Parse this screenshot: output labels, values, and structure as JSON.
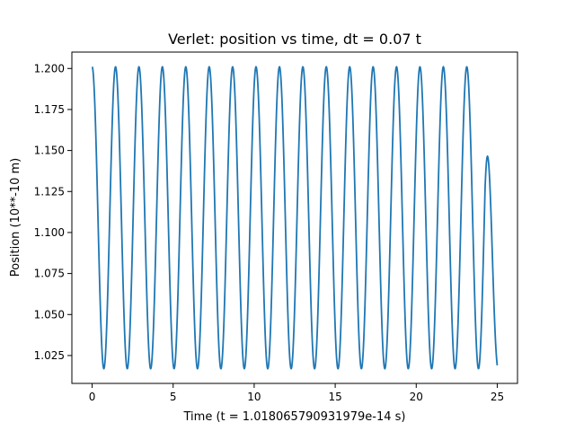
{
  "chart_data": {
    "type": "line",
    "title": "Verlet: position vs time, dt = 0.07 t",
    "xlabel": "Time (t = 1.018065790931979e-14 s)",
    "ylabel": "Position (10**-10 m)",
    "xlim": [
      -1.25,
      26.25
    ],
    "ylim": [
      1.008,
      1.21
    ],
    "x_ticks": [
      0,
      5,
      10,
      15,
      20,
      25
    ],
    "x_tick_labels": [
      "0",
      "5",
      "10",
      "15",
      "20",
      "25"
    ],
    "y_ticks": [
      1.025,
      1.05,
      1.075,
      1.1,
      1.125,
      1.15,
      1.175,
      1.2
    ],
    "y_tick_labels": [
      "1.025",
      "1.050",
      "1.075",
      "1.100",
      "1.125",
      "1.150",
      "1.175",
      "1.200"
    ],
    "grid": false,
    "legend": "none",
    "color": "#1f77b4",
    "series": [
      {
        "x": [
          0,
          0.35,
          0.7,
          0.76,
          1.05,
          1.4,
          1.45,
          1.85,
          2.2,
          2.5,
          2.9,
          3.3,
          3.6,
          4.0,
          4.35,
          4.65,
          5.05,
          5.45,
          5.75,
          6.15,
          6.5,
          6.8,
          7.2,
          7.55,
          7.9,
          8.3,
          8.6,
          9.0,
          9.35,
          9.65,
          10.05,
          10.45,
          10.75,
          11.15,
          11.5,
          11.85,
          12.2,
          12.6,
          12.9,
          13.3,
          13.65,
          14.0,
          14.35,
          14.75,
          15.1,
          15.45,
          15.8,
          16.15,
          16.5,
          16.85,
          17.25,
          17.6,
          17.95,
          18.3,
          18.65,
          19.05,
          19.4,
          19.75,
          20.1,
          20.45,
          20.8,
          21.2,
          21.55,
          21.9,
          22.25,
          22.6,
          22.95,
          23.35,
          23.7,
          24.05,
          24.4,
          24.75,
          25.0
        ],
        "y": [
          1.201,
          1.15,
          1.04,
          1.017,
          1.06,
          1.18,
          1.2,
          1.11,
          1.017,
          1.06,
          1.2,
          1.11,
          1.017,
          1.06,
          1.2,
          1.12,
          1.017,
          1.06,
          1.2,
          1.11,
          1.017,
          1.06,
          1.201,
          1.11,
          1.017,
          1.06,
          1.2,
          1.11,
          1.017,
          1.06,
          1.2,
          1.11,
          1.017,
          1.06,
          1.2,
          1.11,
          1.017,
          1.06,
          1.2,
          1.11,
          1.017,
          1.06,
          1.2,
          1.11,
          1.017,
          1.06,
          1.2,
          1.11,
          1.017,
          1.06,
          1.2,
          1.11,
          1.017,
          1.06,
          1.2,
          1.11,
          1.017,
          1.06,
          1.2,
          1.11,
          1.017,
          1.06,
          1.2,
          1.11,
          1.017,
          1.06,
          1.2,
          1.11,
          1.017,
          1.06,
          1.2,
          1.09,
          1.019
        ],
        "model": {
          "type": "oscillation",
          "period": 1.445,
          "mean": 1.109,
          "amplitude": 0.092,
          "start_x": 0,
          "end_x": 25,
          "start_y": 1.201,
          "end_y": 1.019
        }
      }
    ]
  }
}
